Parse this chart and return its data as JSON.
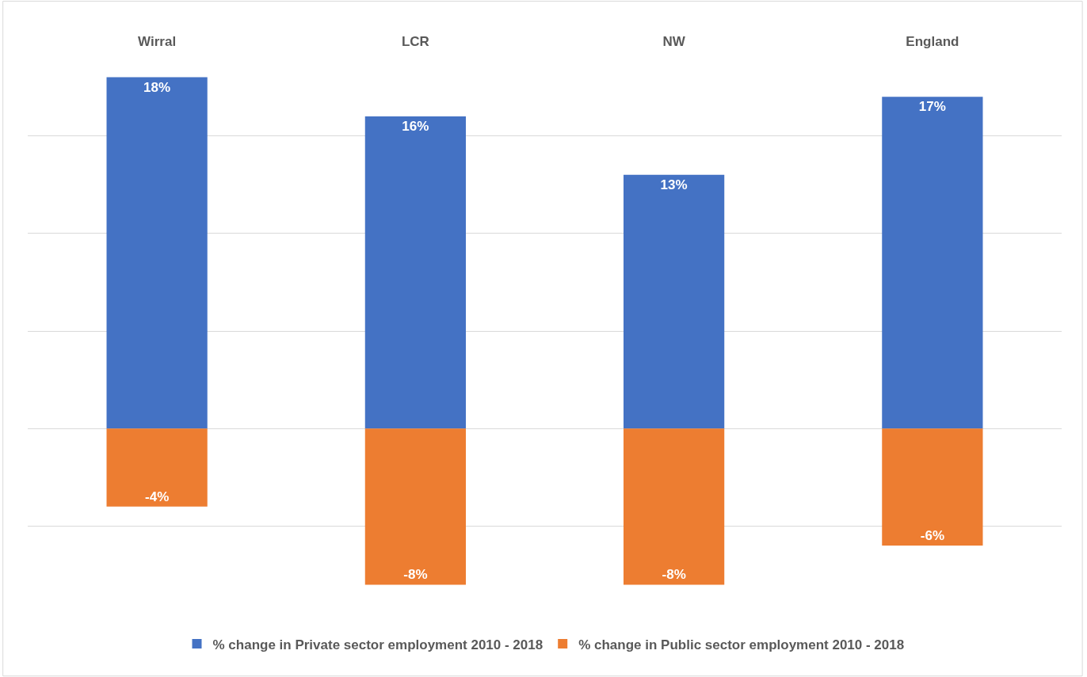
{
  "chart_data": {
    "type": "bar",
    "stacked": true,
    "categories": [
      "Wirral",
      "LCR",
      "NW",
      "England"
    ],
    "series": [
      {
        "name": "% change in Private sector employment 2010 - 2018",
        "color": "#4472c4",
        "values": [
          18,
          16,
          13,
          17
        ],
        "value_labels": [
          "18%",
          "16%",
          "13%",
          "17%"
        ]
      },
      {
        "name": "% change in Public sector employment 2010 - 2018",
        "color": "#ed7d31",
        "values": [
          -4,
          -8,
          -8,
          -6
        ],
        "value_labels": [
          "-4%",
          "-8%",
          "-8%",
          "-6%"
        ]
      }
    ],
    "grid": "y",
    "legend": "bottom",
    "tick_labels": "x"
  }
}
